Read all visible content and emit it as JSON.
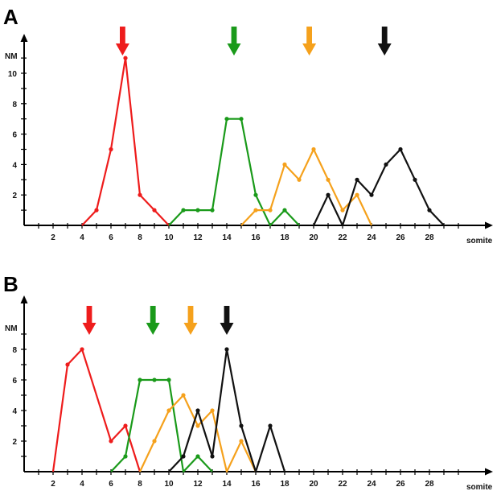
{
  "chart_data": [
    {
      "type": "line",
      "panel_label": "A",
      "ylabel": "NM",
      "xlabel": "somite",
      "xlim": [
        0,
        31
      ],
      "ylim": [
        0,
        11.5
      ],
      "x_ticks": [
        2,
        4,
        6,
        8,
        10,
        12,
        14,
        16,
        18,
        20,
        22,
        24,
        26,
        28
      ],
      "y_ticks": [
        2,
        4,
        6,
        8,
        10
      ],
      "grid": false,
      "series": [
        {
          "color": "#ee1c1c",
          "points": [
            [
              4,
              0
            ],
            [
              5,
              1
            ],
            [
              6,
              5
            ],
            [
              7,
              11
            ],
            [
              8,
              2
            ],
            [
              9,
              1
            ],
            [
              10,
              0
            ]
          ]
        },
        {
          "color": "#1a9a1a",
          "points": [
            [
              10,
              0
            ],
            [
              11,
              1
            ],
            [
              12,
              1
            ],
            [
              13,
              1
            ],
            [
              14,
              7
            ],
            [
              15,
              7
            ],
            [
              16,
              2
            ],
            [
              17,
              0
            ],
            [
              18,
              1
            ],
            [
              19,
              0
            ]
          ]
        },
        {
          "color": "#f5a11c",
          "points": [
            [
              15,
              0
            ],
            [
              16,
              1
            ],
            [
              17,
              1
            ],
            [
              18,
              4
            ],
            [
              19,
              3
            ],
            [
              20,
              5
            ],
            [
              21,
              3
            ],
            [
              22,
              1
            ],
            [
              23,
              2
            ],
            [
              24,
              0
            ]
          ]
        },
        {
          "color": "#111111",
          "points": [
            [
              20,
              0
            ],
            [
              21,
              2
            ],
            [
              22,
              0
            ],
            [
              23,
              3
            ],
            [
              24,
              2
            ],
            [
              25,
              4
            ],
            [
              26,
              5
            ],
            [
              27,
              3
            ],
            [
              28,
              1
            ],
            [
              29,
              0
            ]
          ]
        }
      ],
      "arrows": [
        {
          "color": "#ee1c1c",
          "x": 6.8
        },
        {
          "color": "#1a9a1a",
          "x": 14.5
        },
        {
          "color": "#f5a11c",
          "x": 19.7
        },
        {
          "color": "#111111",
          "x": 24.9
        }
      ]
    },
    {
      "type": "line",
      "panel_label": "B",
      "ylabel": "NM",
      "xlabel": "somite",
      "xlim": [
        0,
        31
      ],
      "ylim": [
        0,
        9.5
      ],
      "x_ticks": [
        2,
        4,
        6,
        8,
        10,
        12,
        14,
        16,
        18,
        20,
        22,
        24,
        26,
        28
      ],
      "y_ticks": [
        2,
        4,
        6,
        8
      ],
      "grid": false,
      "series": [
        {
          "color": "#ee1c1c",
          "points": [
            [
              2,
              0
            ],
            [
              3,
              7
            ],
            [
              4,
              8
            ],
            [
              6,
              2
            ],
            [
              7,
              3
            ],
            [
              8,
              0
            ]
          ]
        },
        {
          "color": "#1a9a1a",
          "points": [
            [
              6,
              0
            ],
            [
              7,
              1
            ],
            [
              8,
              6
            ],
            [
              9,
              6
            ],
            [
              10,
              6
            ],
            [
              11,
              0
            ],
            [
              12,
              1
            ],
            [
              13,
              0
            ]
          ]
        },
        {
          "color": "#f5a11c",
          "points": [
            [
              8,
              0
            ],
            [
              9,
              2
            ],
            [
              10,
              4
            ],
            [
              11,
              5
            ],
            [
              12,
              3
            ],
            [
              13,
              4
            ],
            [
              14,
              0
            ],
            [
              15,
              2
            ],
            [
              16,
              0
            ]
          ]
        },
        {
          "color": "#111111",
          "points": [
            [
              10,
              0
            ],
            [
              11,
              1
            ],
            [
              12,
              4
            ],
            [
              13,
              1
            ],
            [
              14,
              8
            ],
            [
              15,
              3
            ],
            [
              16,
              0
            ],
            [
              17,
              3
            ],
            [
              18,
              0
            ]
          ]
        }
      ],
      "arrows": [
        {
          "color": "#ee1c1c",
          "x": 4.5
        },
        {
          "color": "#1a9a1a",
          "x": 8.9
        },
        {
          "color": "#f5a11c",
          "x": 11.5
        },
        {
          "color": "#111111",
          "x": 14.0
        }
      ]
    }
  ]
}
